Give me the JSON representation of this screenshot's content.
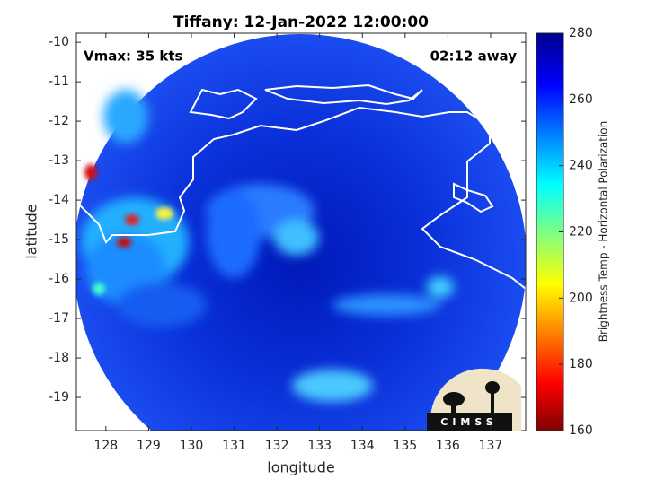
{
  "map": {
    "title": "Tiffany: 12-Jan-2022 12:00:00",
    "annotations": {
      "left": "Vmax: 35 kts",
      "right": "02:12 away"
    },
    "xlabel": "longitude",
    "ylabel": "latitude",
    "xlim": [
      127.31,
      137.82
    ],
    "ylim": [
      -19.84,
      -9.77
    ],
    "xticks": [
      128,
      129,
      130,
      131,
      132,
      133,
      134,
      135,
      136,
      137
    ],
    "yticks": [
      -10,
      -11,
      -12,
      -13,
      -14,
      -15,
      -16,
      -17,
      -18,
      -19
    ],
    "colorbar": {
      "label": "Brightness Temp - Horizontal Polarization",
      "lim": [
        160,
        280
      ],
      "ticks": [
        160,
        180,
        200,
        220,
        240,
        260,
        280
      ]
    },
    "logo": "CIMSS"
  }
}
